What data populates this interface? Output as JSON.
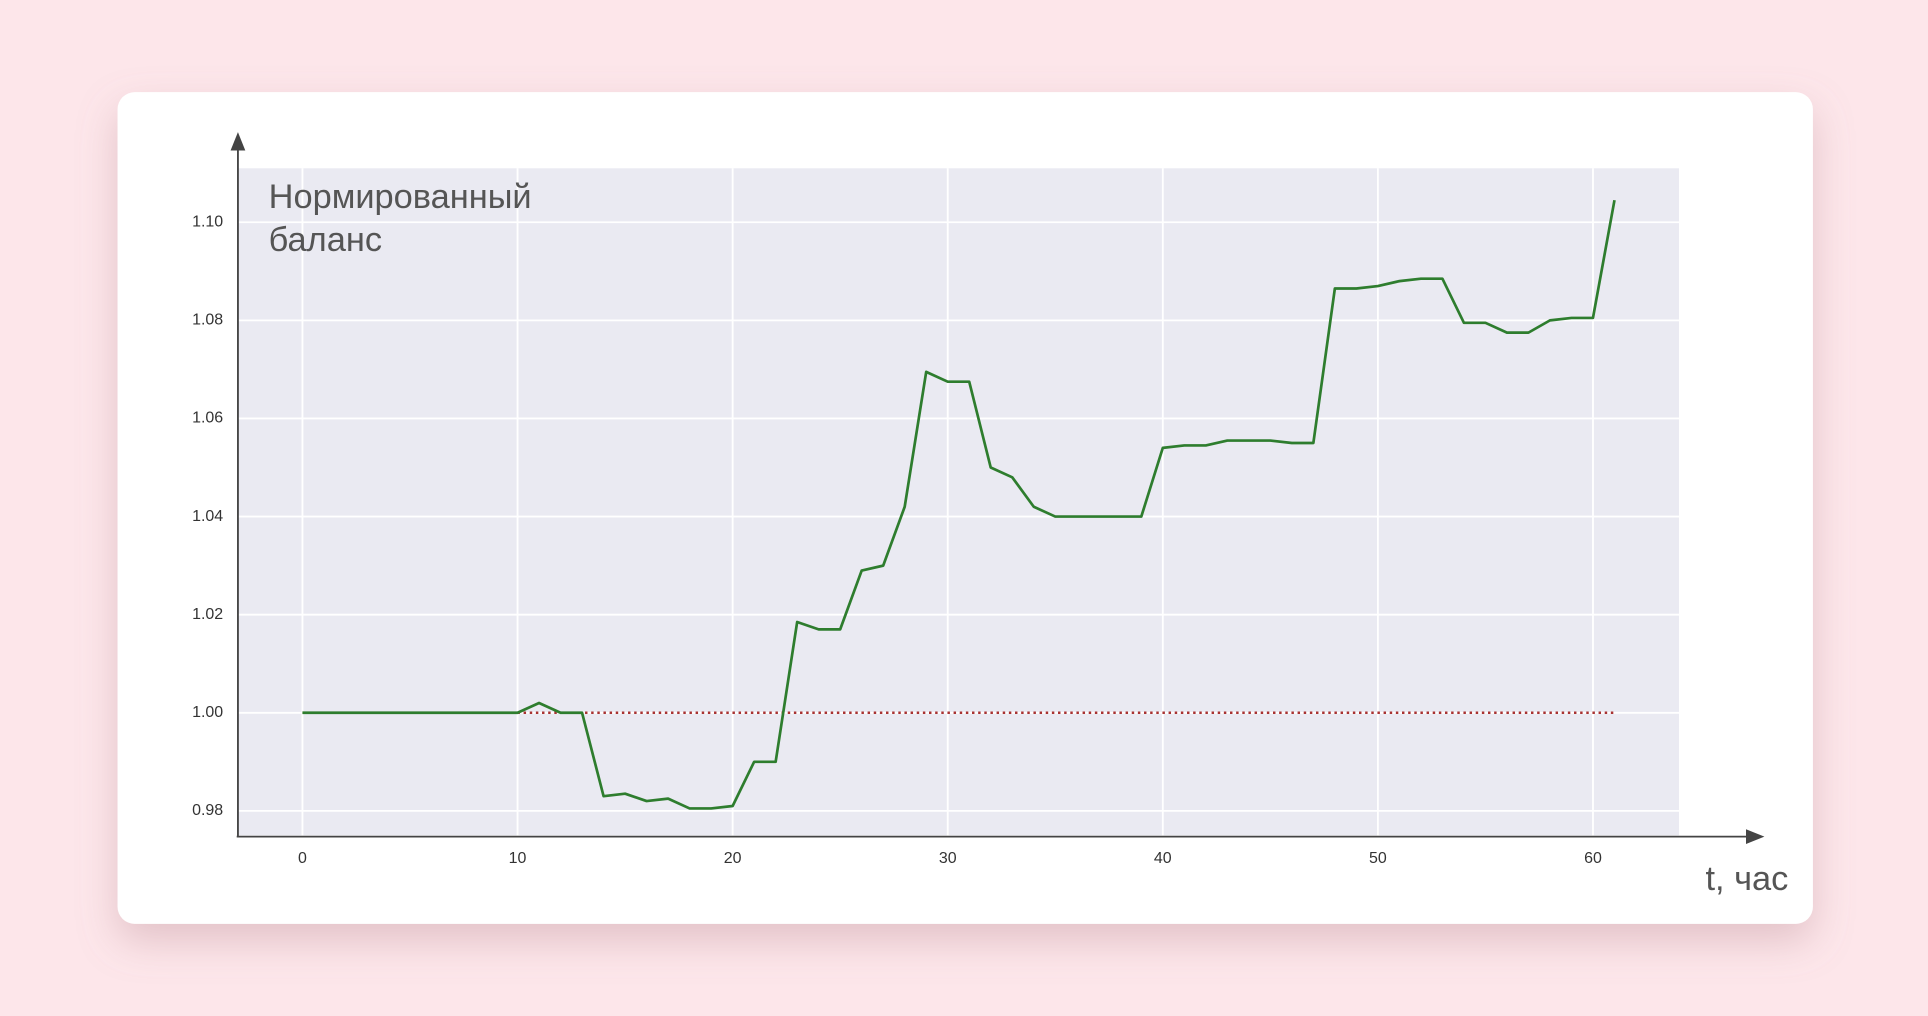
{
  "chart_data": {
    "type": "line",
    "title_lines": [
      "Нормированный",
      "баланс"
    ],
    "x_label": "t, час",
    "x": [
      0,
      1,
      2,
      3,
      4,
      5,
      6,
      7,
      8,
      9,
      10,
      11,
      12,
      13,
      14,
      15,
      16,
      17,
      18,
      19,
      20,
      21,
      22,
      23,
      24,
      25,
      26,
      27,
      28,
      29,
      30,
      31,
      32,
      33,
      34,
      35,
      36,
      37,
      38,
      39,
      40,
      41,
      42,
      43,
      44,
      45,
      46,
      47,
      48,
      49,
      50,
      51,
      52,
      53,
      54,
      55,
      56,
      57,
      58,
      59,
      60,
      61
    ],
    "series": [
      {
        "color": "#2e7d2e",
        "values": [
          1.0,
          1.0,
          1.0,
          1.0,
          1.0,
          1.0,
          1.0,
          1.0,
          1.0,
          1.0,
          1.0,
          1.002,
          1.0,
          1.0,
          0.983,
          0.9835,
          0.982,
          0.9825,
          0.9805,
          0.9805,
          0.981,
          0.99,
          0.99,
          1.0185,
          1.017,
          1.017,
          1.029,
          1.03,
          1.042,
          1.0695,
          1.0675,
          1.0675,
          1.05,
          1.048,
          1.042,
          1.04,
          1.04,
          1.04,
          1.04,
          1.04,
          1.054,
          1.0545,
          1.0545,
          1.0555,
          1.0555,
          1.0555,
          1.055,
          1.055,
          1.0865,
          1.0865,
          1.087,
          1.088,
          1.0885,
          1.0885,
          1.0795,
          1.0795,
          1.0775,
          1.0775,
          1.08,
          1.0805,
          1.0805,
          1.1045
        ]
      }
    ],
    "reference_line": {
      "x": [
        0,
        61
      ],
      "values": [
        1.0,
        1.0
      ],
      "color": "#a83232",
      "style": "dotted"
    },
    "xlim": [
      -3,
      64
    ],
    "ylim": [
      0.975,
      1.111
    ],
    "xticks": [
      0,
      10,
      20,
      30,
      40,
      50,
      60
    ],
    "yticks": [
      0.98,
      {
        "value": 1.0,
        "label": "1.00"
      },
      1.02,
      1.04,
      1.06,
      1.08,
      {
        "value": 1.1,
        "label": "1.10"
      }
    ],
    "grid": true
  }
}
